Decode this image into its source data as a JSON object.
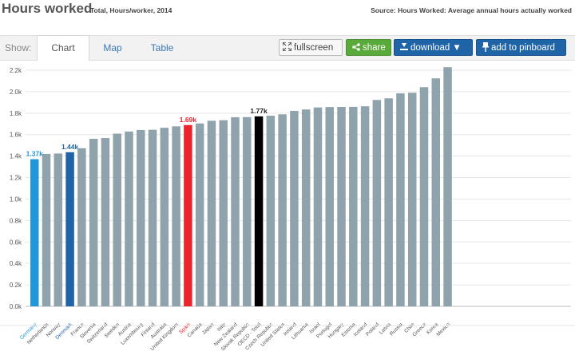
{
  "header": {
    "title": "Hours worked",
    "subtitle": "Total, Hours/worker, 2014",
    "source": "Source: Hours Worked: Average annual hours actually worked"
  },
  "toolbar": {
    "show_label": "Show:",
    "tabs": [
      {
        "label": "Chart",
        "active": true
      },
      {
        "label": "Map",
        "active": false
      },
      {
        "label": "Table",
        "active": false
      }
    ],
    "fullscreen_label": "fullscreen",
    "share_label": "share",
    "download_label": "download ▼",
    "pinboard_label": "add to pinboard"
  },
  "chart_data": {
    "type": "bar",
    "ylim": [
      0,
      2200
    ],
    "y_ticks": [
      0,
      200,
      400,
      600,
      800,
      1000,
      1200,
      1400,
      1600,
      1800,
      2000,
      2200
    ],
    "y_tick_labels": [
      "0.0k",
      "0.2k",
      "0.4k",
      "0.6k",
      "0.8k",
      "1.0k",
      "1.2k",
      "1.4k",
      "1.6k",
      "1.8k",
      "2.0k",
      "2.2k"
    ],
    "grid": true,
    "categories": [
      "Germany",
      "Netherlands",
      "Norway",
      "Denmark",
      "France",
      "Slovenia",
      "Switzerland",
      "Sweden",
      "Austria",
      "Luxembourg",
      "Finland",
      "Australia",
      "United Kingdom",
      "Spain",
      "Canada",
      "Japan",
      "Italy",
      "New Zealand",
      "Slovak Republic",
      "OECD - Total",
      "Czech Republic",
      "United States",
      "Ireland",
      "Lithuania",
      "Israel",
      "Portugal",
      "Hungary",
      "Estonia",
      "Iceland",
      "Poland",
      "Latvia",
      "Russia",
      "Chile",
      "Greece",
      "Korea",
      "Mexico"
    ],
    "values": [
      1371,
      1420,
      1424,
      1436,
      1473,
      1561,
      1568,
      1609,
      1629,
      1643,
      1645,
      1664,
      1677,
      1689,
      1704,
      1729,
      1734,
      1762,
      1763,
      1770,
      1776,
      1789,
      1821,
      1834,
      1853,
      1857,
      1858,
      1859,
      1864,
      1923,
      1938,
      1985,
      1990,
      2042,
      2124,
      2228
    ],
    "highlights": {
      "Germany": {
        "color": "#2196d9",
        "label": "1.37k",
        "label_color": "#2196d9"
      },
      "Denmark": {
        "color": "#1f64a6",
        "label": "1.44k",
        "label_color": "#1f64a6"
      },
      "Spain": {
        "color": "#e8262e",
        "label": "1.69k",
        "label_color": "#e8262e"
      },
      "OECD - Total": {
        "color": "#000000",
        "label": "1.77k",
        "label_color": "#222222"
      }
    },
    "default_color": "#8fa3ad",
    "axis_label_colors": {
      "Germany": "#2196d9",
      "Denmark": "#1f64a6",
      "Spain": "#e8262e"
    }
  }
}
